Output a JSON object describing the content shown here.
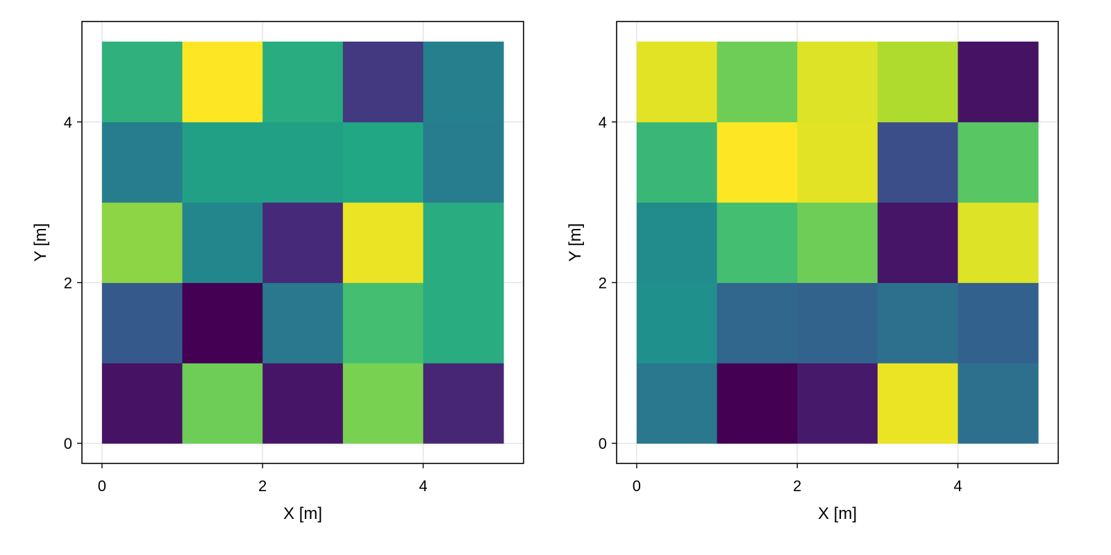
{
  "chart_data": [
    {
      "type": "heatmap",
      "xlabel": "X [m]",
      "ylabel": "Y [m]",
      "xlim": [
        -0.25,
        5.25
      ],
      "ylim": [
        -0.25,
        5.25
      ],
      "xticks": [
        0,
        2,
        4
      ],
      "yticks": [
        0,
        2,
        4
      ],
      "grid": true,
      "colormap": "viridis",
      "x_edges": [
        0,
        1,
        2,
        3,
        4,
        5
      ],
      "y_edges": [
        0,
        1,
        2,
        3,
        4,
        5
      ],
      "values_rows_bottom_to_top": [
        [
          0.05,
          0.78,
          0.06,
          0.8,
          0.11
        ],
        [
          0.28,
          0.0,
          0.4,
          0.7,
          0.62
        ],
        [
          0.83,
          0.46,
          0.12,
          0.97,
          0.62
        ],
        [
          0.42,
          0.57,
          0.57,
          0.6,
          0.42
        ],
        [
          0.64,
          1.0,
          0.62,
          0.17,
          0.43
        ]
      ]
    },
    {
      "type": "heatmap",
      "xlabel": "X [m]",
      "ylabel": "Y [m]",
      "xlim": [
        -0.25,
        5.25
      ],
      "ylim": [
        -0.25,
        5.25
      ],
      "xticks": [
        0,
        2,
        4
      ],
      "yticks": [
        0,
        2,
        4
      ],
      "grid": true,
      "colormap": "viridis",
      "x_edges": [
        0,
        1,
        2,
        3,
        4,
        5
      ],
      "y_edges": [
        0,
        1,
        2,
        3,
        4,
        5
      ],
      "values_rows_bottom_to_top": [
        [
          0.4,
          0.0,
          0.07,
          0.97,
          0.37
        ],
        [
          0.5,
          0.33,
          0.32,
          0.37,
          0.31
        ],
        [
          0.48,
          0.7,
          0.78,
          0.06,
          0.95
        ],
        [
          0.67,
          1.0,
          0.96,
          0.24,
          0.74
        ],
        [
          0.96,
          0.78,
          0.95,
          0.88,
          0.05
        ]
      ]
    }
  ]
}
